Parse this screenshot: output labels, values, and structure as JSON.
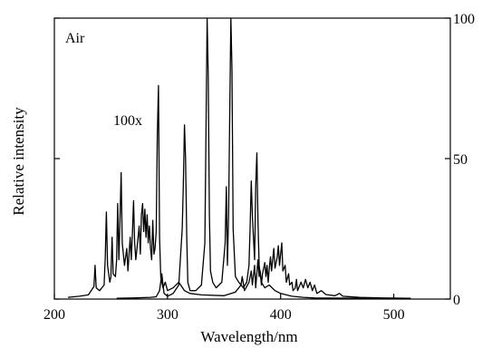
{
  "chart_data": {
    "type": "line",
    "title": "",
    "annotation": "Air",
    "magnification_label": "100x",
    "xlabel": "Wavelength/nm",
    "ylabel": "Relative intensity",
    "xlim": [
      200,
      550
    ],
    "ylim": [
      0,
      100
    ],
    "x_ticks": [
      200,
      300,
      400,
      500
    ],
    "y_ticks_right": [
      0,
      50,
      100
    ],
    "grid": false,
    "series": [
      {
        "scale": "magnified",
        "points": [
          [
            212,
            0.6
          ],
          [
            222,
            1.0
          ],
          [
            230,
            1.5
          ],
          [
            235,
            4.5
          ],
          [
            236,
            12
          ],
          [
            237,
            4
          ],
          [
            240,
            3
          ],
          [
            244,
            5
          ],
          [
            245,
            15
          ],
          [
            246,
            31
          ],
          [
            247,
            12
          ],
          [
            249,
            6
          ],
          [
            250,
            8
          ],
          [
            251,
            22
          ],
          [
            252,
            9
          ],
          [
            254,
            8
          ],
          [
            255,
            14
          ],
          [
            256,
            34
          ],
          [
            257,
            14
          ],
          [
            258,
            28
          ],
          [
            259,
            45
          ],
          [
            260,
            20
          ],
          [
            262,
            12
          ],
          [
            264,
            18
          ],
          [
            265,
            10
          ],
          [
            267,
            22
          ],
          [
            268,
            14
          ],
          [
            269,
            24
          ],
          [
            270,
            35
          ],
          [
            271,
            20
          ],
          [
            272,
            14
          ],
          [
            274,
            22
          ],
          [
            275,
            26
          ],
          [
            276,
            16
          ],
          [
            277,
            30
          ],
          [
            278,
            34
          ],
          [
            279,
            24
          ],
          [
            280,
            32
          ],
          [
            281,
            22
          ],
          [
            282,
            30
          ],
          [
            283,
            20
          ],
          [
            284,
            26
          ],
          [
            285,
            18
          ],
          [
            286,
            14
          ],
          [
            287,
            28
          ],
          [
            288,
            16
          ],
          [
            289,
            18
          ],
          [
            290,
            24
          ],
          [
            291,
            58
          ],
          [
            292,
            76
          ],
          [
            293,
            22
          ],
          [
            294,
            8
          ],
          [
            296,
            4
          ],
          [
            298,
            6
          ],
          [
            300,
            3
          ],
          [
            305,
            4
          ],
          [
            310,
            6
          ],
          [
            315,
            3
          ],
          [
            320,
            2
          ],
          [
            330,
            1.5
          ],
          [
            350,
            1.2
          ],
          [
            360,
            2.5
          ],
          [
            365,
            5
          ],
          [
            366,
            8
          ],
          [
            368,
            3
          ],
          [
            372,
            6
          ],
          [
            374,
            10
          ],
          [
            375,
            5
          ],
          [
            377,
            12
          ],
          [
            378,
            4
          ],
          [
            380,
            14
          ],
          [
            381,
            8
          ],
          [
            382,
            10
          ],
          [
            383,
            5
          ],
          [
            384,
            9
          ],
          [
            386,
            13
          ],
          [
            387,
            8
          ],
          [
            388,
            12
          ],
          [
            389,
            6
          ],
          [
            390,
            11
          ],
          [
            391,
            15
          ],
          [
            392,
            10
          ],
          [
            394,
            18
          ],
          [
            395,
            11
          ],
          [
            397,
            15
          ],
          [
            398,
            19
          ],
          [
            399,
            12
          ],
          [
            400,
            16
          ],
          [
            401,
            20
          ],
          [
            402,
            10
          ],
          [
            404,
            12
          ],
          [
            405,
            6
          ],
          [
            407,
            9
          ],
          [
            408,
            5
          ],
          [
            410,
            6
          ],
          [
            411,
            3
          ],
          [
            413,
            4
          ],
          [
            414,
            7
          ],
          [
            415,
            3
          ],
          [
            418,
            6
          ],
          [
            420,
            4
          ],
          [
            422,
            7
          ],
          [
            424,
            4
          ],
          [
            426,
            6
          ],
          [
            428,
            3
          ],
          [
            430,
            5
          ],
          [
            432,
            2
          ],
          [
            436,
            3
          ],
          [
            440,
            1.6
          ],
          [
            448,
            1.2
          ],
          [
            452,
            2
          ],
          [
            455,
            1
          ],
          [
            470,
            0.6
          ],
          [
            490,
            0.4
          ],
          [
            515,
            0.3
          ]
        ]
      },
      {
        "scale": "actual",
        "points": [
          [
            255,
            0.3
          ],
          [
            270,
            0.4
          ],
          [
            285,
            0.6
          ],
          [
            290,
            0.8
          ],
          [
            293,
            3
          ],
          [
            295,
            9
          ],
          [
            296,
            5
          ],
          [
            297,
            2
          ],
          [
            300,
            1
          ],
          [
            305,
            2
          ],
          [
            310,
            5
          ],
          [
            313,
            25
          ],
          [
            314,
            40
          ],
          [
            315,
            62
          ],
          [
            316,
            50
          ],
          [
            317,
            22
          ],
          [
            318,
            6
          ],
          [
            320,
            3
          ],
          [
            325,
            3
          ],
          [
            330,
            5
          ],
          [
            333,
            20
          ],
          [
            335,
            100
          ],
          [
            336,
            80
          ],
          [
            337,
            30
          ],
          [
            338,
            10
          ],
          [
            340,
            6
          ],
          [
            343,
            4
          ],
          [
            348,
            6
          ],
          [
            351,
            20
          ],
          [
            352,
            40
          ],
          [
            353,
            12
          ],
          [
            354,
            30
          ],
          [
            355,
            65
          ],
          [
            356,
            100
          ],
          [
            357,
            82
          ],
          [
            358,
            25
          ],
          [
            360,
            8
          ],
          [
            363,
            6
          ],
          [
            367,
            4
          ],
          [
            370,
            6
          ],
          [
            372,
            12
          ],
          [
            373,
            25
          ],
          [
            374,
            42
          ],
          [
            375,
            30
          ],
          [
            376,
            22
          ],
          [
            377,
            14
          ],
          [
            378,
            40
          ],
          [
            379,
            52
          ],
          [
            380,
            28
          ],
          [
            381,
            12
          ],
          [
            383,
            6
          ],
          [
            386,
            4
          ],
          [
            390,
            5
          ],
          [
            395,
            3
          ],
          [
            400,
            2
          ],
          [
            405,
            1.5
          ],
          [
            410,
            1
          ],
          [
            420,
            0.6
          ],
          [
            430,
            0.4
          ],
          [
            500,
            0.2
          ],
          [
            515,
            0.2
          ]
        ]
      }
    ]
  }
}
